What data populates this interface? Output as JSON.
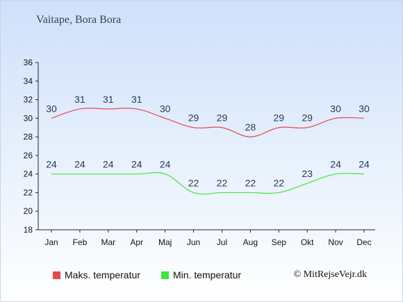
{
  "title": "Vaitape, Bora Bora",
  "copyright": "© MitRejseVejr.dk",
  "chart_data": {
    "type": "line",
    "categories": [
      "Jan",
      "Feb",
      "Mar",
      "Apr",
      "Maj",
      "Jun",
      "Jul",
      "Aug",
      "Sep",
      "Okt",
      "Nov",
      "Dec"
    ],
    "series": [
      {
        "name": "Maks. temperatur",
        "color": "#e8474e",
        "values": [
          30,
          31,
          31,
          31,
          30,
          29,
          29,
          28,
          29,
          29,
          30,
          30
        ]
      },
      {
        "name": "Min. temperatur",
        "color": "#3ce63c",
        "values": [
          24,
          24,
          24,
          24,
          24,
          22,
          22,
          22,
          22,
          23,
          24,
          24
        ]
      }
    ],
    "ylim": [
      18,
      36
    ],
    "yticks": [
      18,
      20,
      22,
      24,
      26,
      28,
      30,
      32,
      34,
      36
    ],
    "grid": false,
    "legend": "bottom-left"
  }
}
